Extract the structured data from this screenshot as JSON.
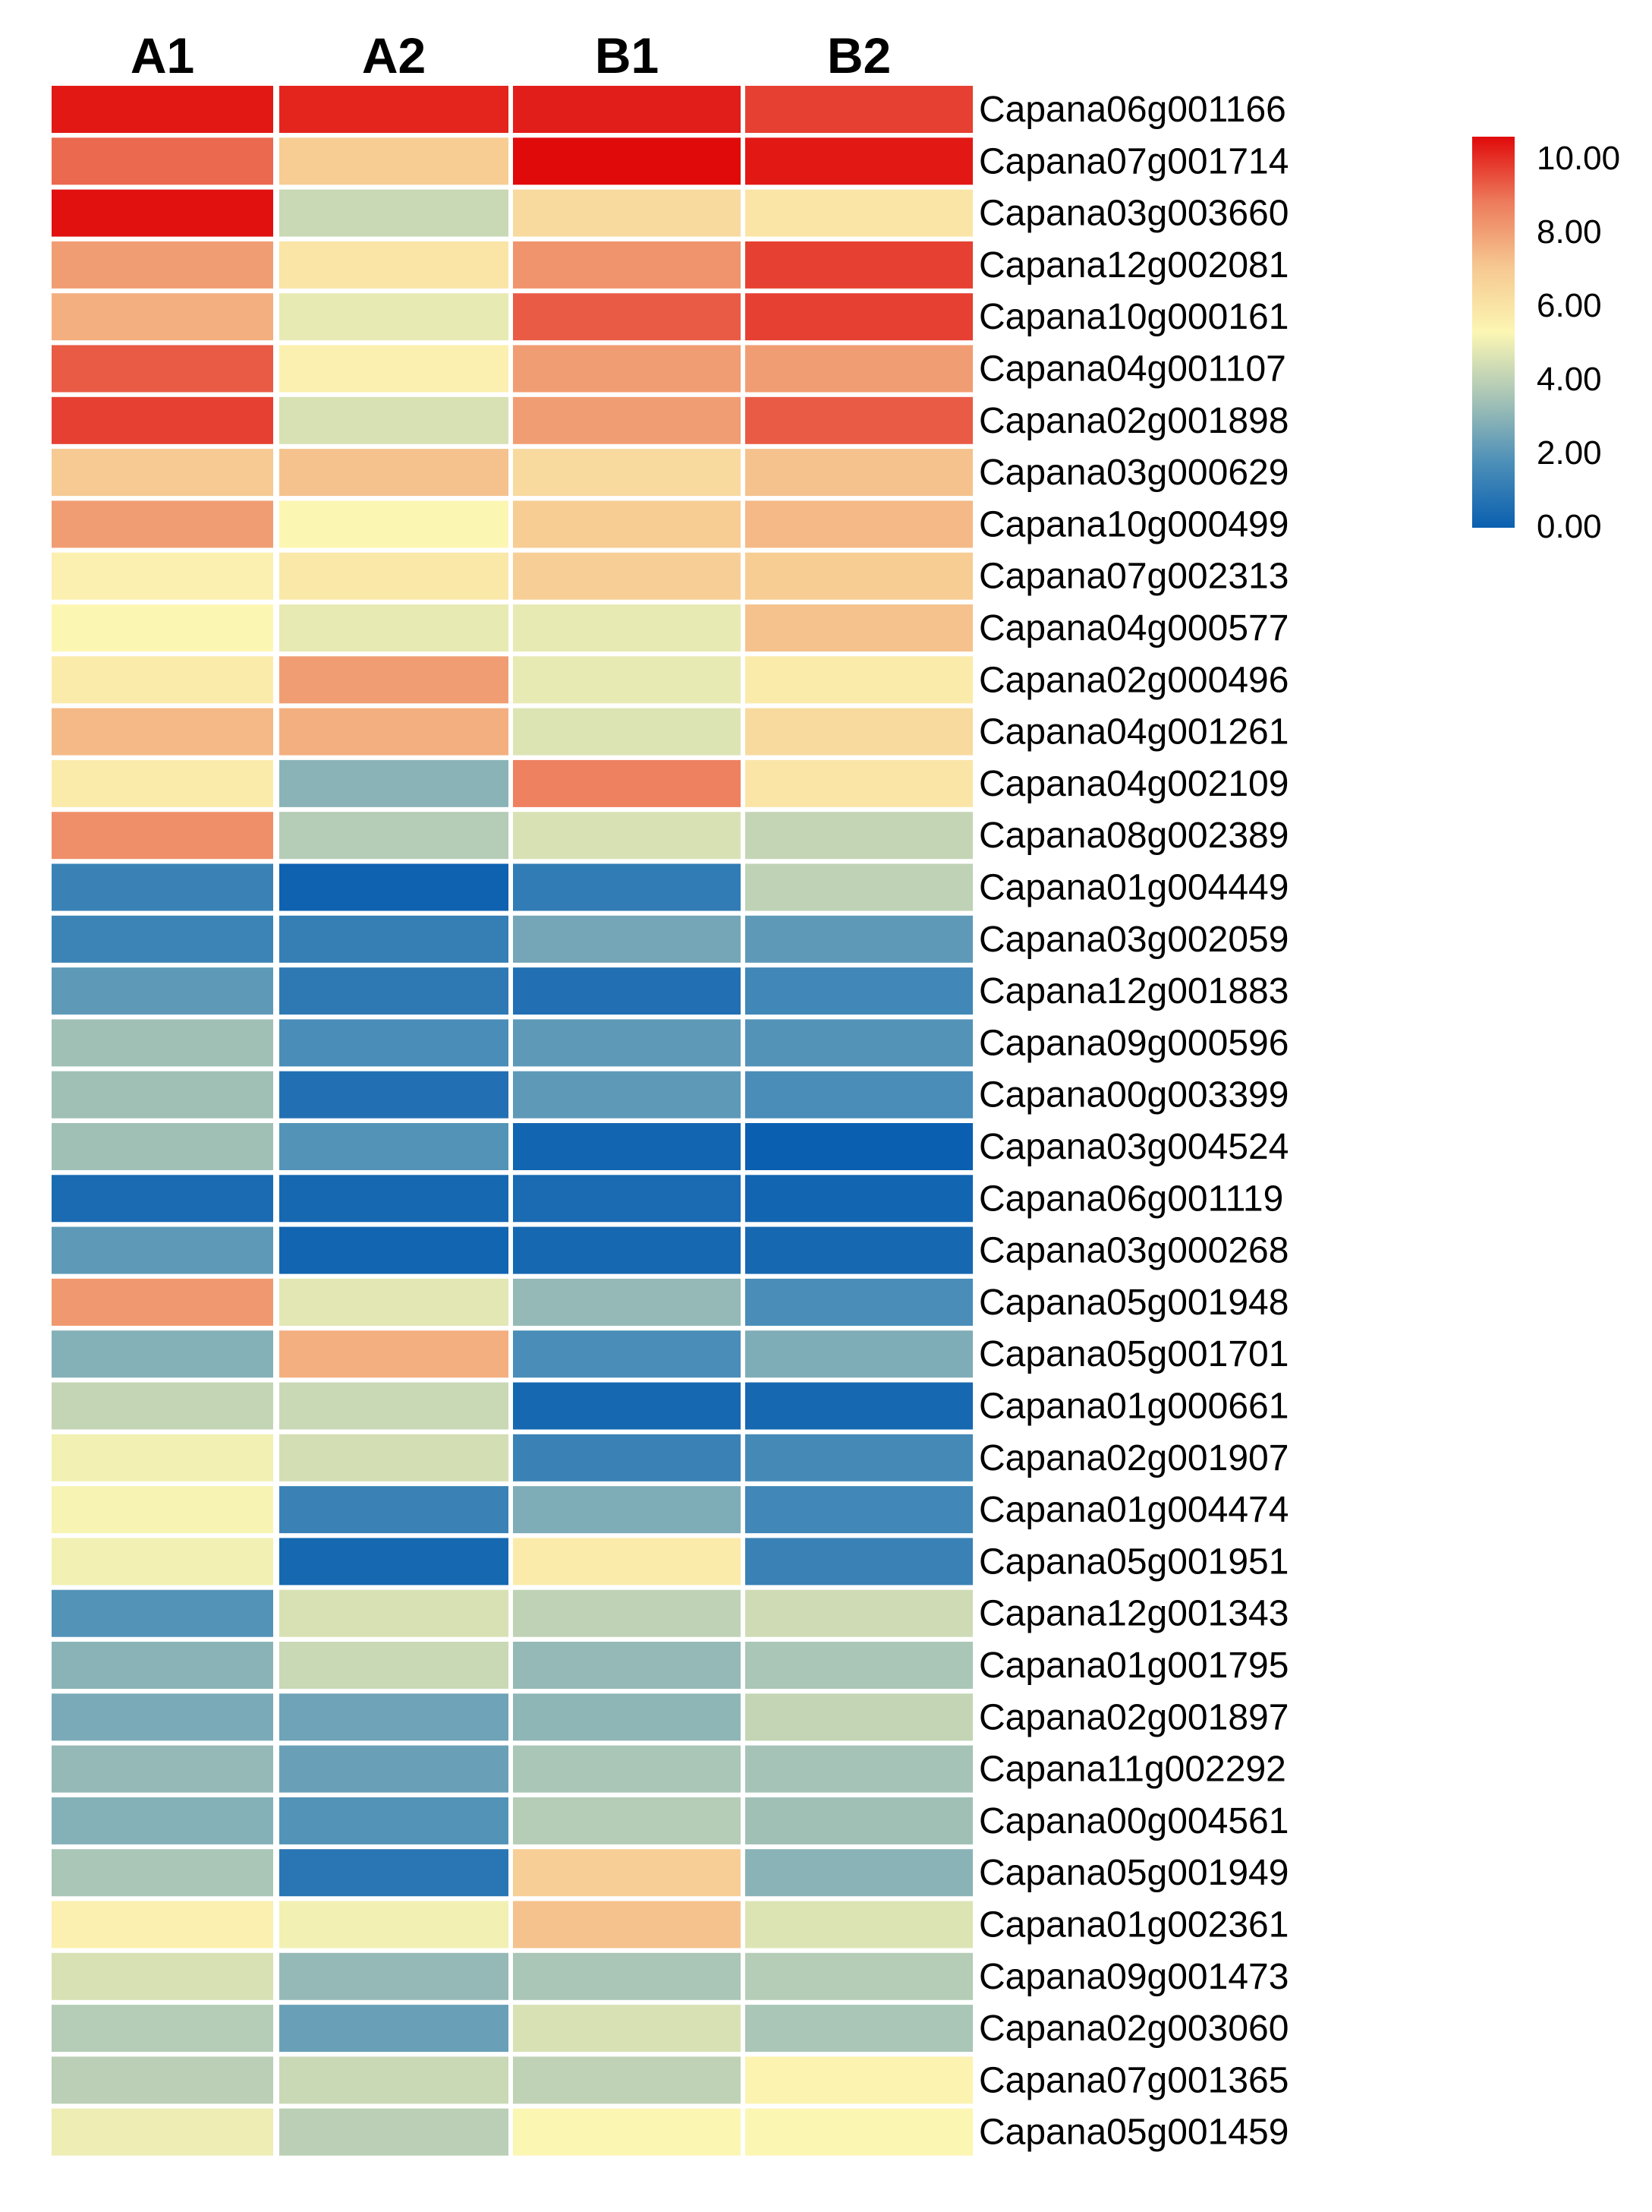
{
  "chart_data": {
    "type": "heatmap",
    "title": "",
    "columns": [
      "A1",
      "A2",
      "B1",
      "B2"
    ],
    "rows": [
      "Capana06g001166",
      "Capana07g001714",
      "Capana03g003660",
      "Capana12g002081",
      "Capana10g000161",
      "Capana04g001107",
      "Capana02g001898",
      "Capana03g000629",
      "Capana10g000499",
      "Capana07g002313",
      "Capana04g000577",
      "Capana02g000496",
      "Capana04g001261",
      "Capana04g002109",
      "Capana08g002389",
      "Capana01g004449",
      "Capana03g002059",
      "Capana12g001883",
      "Capana09g000596",
      "Capana00g003399",
      "Capana03g004524",
      "Capana06g001119",
      "Capana03g000268",
      "Capana05g001948",
      "Capana05g001701",
      "Capana01g000661",
      "Capana02g001907",
      "Capana01g004474",
      "Capana05g001951",
      "Capana12g001343",
      "Capana01g001795",
      "Capana02g001897",
      "Capana11g002292",
      "Capana00g004561",
      "Capana05g001949",
      "Capana01g002361",
      "Capana09g001473",
      "Capana02g003060",
      "Capana07g001365",
      "Capana05g001459"
    ],
    "values": [
      [
        9.8,
        9.6,
        9.7,
        9.2
      ],
      [
        8.6,
        6.5,
        10.0,
        9.8
      ],
      [
        9.9,
        4.0,
        6.0,
        5.6
      ],
      [
        7.6,
        5.6,
        7.8,
        9.2
      ],
      [
        7.2,
        4.6,
        8.8,
        9.2
      ],
      [
        8.8,
        5.2,
        7.6,
        7.6
      ],
      [
        9.2,
        4.3,
        7.6,
        8.8
      ],
      [
        6.6,
        6.8,
        6.0,
        6.8
      ],
      [
        7.6,
        5.0,
        6.5,
        7.0
      ],
      [
        5.2,
        5.5,
        6.4,
        6.5
      ],
      [
        5.0,
        4.6,
        4.6,
        6.8
      ],
      [
        5.4,
        7.6,
        4.6,
        5.4
      ],
      [
        7.0,
        7.2,
        4.4,
        6.0
      ],
      [
        5.4,
        2.8,
        8.2,
        5.6
      ],
      [
        7.9,
        3.6,
        4.3,
        3.9
      ],
      [
        1.2,
        0.1,
        1.0,
        3.8
      ],
      [
        1.3,
        1.1,
        2.4,
        2.0
      ],
      [
        2.0,
        0.9,
        0.6,
        1.4
      ],
      [
        3.2,
        1.6,
        2.0,
        1.8
      ],
      [
        3.2,
        0.6,
        2.0,
        1.6
      ],
      [
        3.2,
        1.8,
        0.2,
        0.0
      ],
      [
        0.4,
        0.3,
        0.4,
        0.2
      ],
      [
        2.0,
        0.2,
        0.3,
        0.3
      ],
      [
        7.7,
        4.5,
        3.0,
        1.6
      ],
      [
        2.7,
        7.2,
        1.6,
        2.6
      ],
      [
        3.9,
        4.0,
        0.3,
        0.3
      ],
      [
        4.8,
        4.2,
        1.2,
        1.5
      ],
      [
        4.9,
        1.2,
        2.6,
        1.4
      ],
      [
        4.8,
        0.3,
        5.4,
        1.2
      ],
      [
        1.8,
        4.3,
        3.8,
        4.1
      ],
      [
        2.8,
        4.0,
        3.0,
        3.4
      ],
      [
        2.5,
        2.3,
        2.9,
        3.9
      ],
      [
        3.0,
        2.2,
        3.4,
        3.3
      ],
      [
        2.7,
        1.8,
        3.6,
        3.2
      ],
      [
        3.4,
        0.8,
        6.4,
        2.8
      ],
      [
        5.2,
        4.8,
        6.8,
        4.4
      ],
      [
        4.3,
        3.0,
        3.4,
        3.6
      ],
      [
        3.6,
        2.2,
        4.3,
        3.4
      ],
      [
        3.7,
        4.0,
        3.8,
        5.1
      ],
      [
        4.7,
        3.7,
        5.0,
        5.0
      ]
    ],
    "colorbar": {
      "ticks": [
        "10.00",
        "8.00",
        "6.00",
        "4.00",
        "2.00",
        "0.00"
      ],
      "range": [
        0,
        10
      ],
      "colors": [
        "#0a5fb0",
        "#4c8fb8",
        "#a7c4b6",
        "#fcf6b3",
        "#f6c891",
        "#ed7b5c",
        "#e00a0b"
      ]
    },
    "xlabel": "",
    "ylabel": ""
  }
}
